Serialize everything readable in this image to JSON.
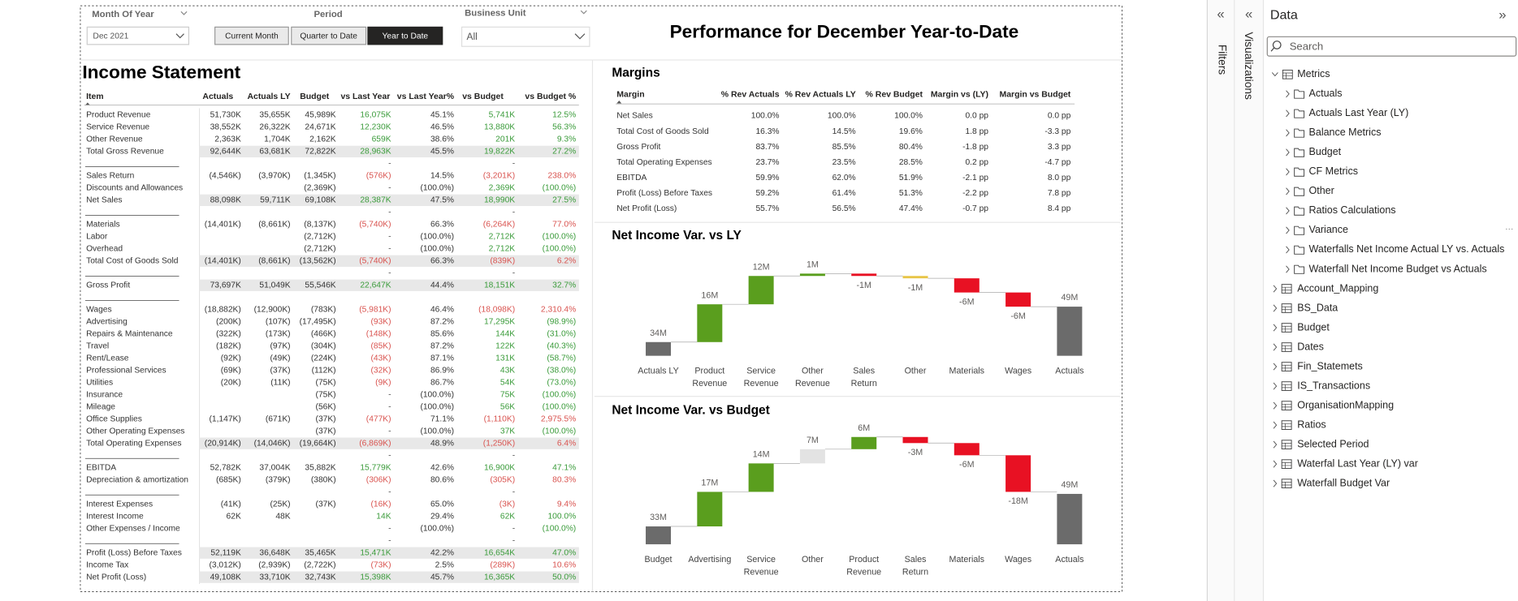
{
  "filters": {
    "month": {
      "label": "Month Of Year",
      "value": "Dec 2021"
    },
    "period": {
      "label": "Period",
      "buttons": [
        "Current Month",
        "Quarter to Date",
        "Year to Date"
      ]
    },
    "business_unit": {
      "label": "Business Unit",
      "value": "All"
    }
  },
  "title": "Performance for December Year-to-Date",
  "income_statement": {
    "title": "Income Statement",
    "columns": [
      "Item",
      "Actuals",
      "Actuals LY",
      "Budget",
      "vs Last Year",
      "vs Last Year%",
      "vs Budget",
      "vs Budget %"
    ],
    "rows": [
      {
        "cells": [
          "Product Revenue",
          "51,730K",
          "35,655K",
          "45,989K",
          "16,075K",
          "45.1%",
          "5,741K",
          "12.5%"
        ]
      },
      {
        "cells": [
          "Service Revenue",
          "38,552K",
          "26,322K",
          "24,671K",
          "12,230K",
          "46.5%",
          "13,880K",
          "56.3%"
        ]
      },
      {
        "cells": [
          "Other Revenue",
          "2,363K",
          "1,704K",
          "2,162K",
          "659K",
          "38.6%",
          "201K",
          "9.3%"
        ]
      },
      {
        "cells": [
          "Total Gross Revenue",
          "92,644K",
          "63,681K",
          "72,822K",
          "28,963K",
          "45.5%",
          "19,822K",
          "27.2%"
        ],
        "shaded": true
      },
      {
        "cells": [
          null,
          null,
          null,
          null,
          "-",
          null,
          "-",
          null
        ],
        "separator": true
      },
      {
        "cells": [
          "Sales Return",
          "(4,546K)",
          "(3,970K)",
          "(1,345K)",
          "(576K)",
          "14.5%",
          "(3,201K)",
          "238.0%"
        ]
      },
      {
        "cells": [
          "Discounts and Allowances",
          null,
          null,
          "(2,369K)",
          "-",
          "(100.0%)",
          "2,369K",
          "(100.0%)"
        ]
      },
      {
        "cells": [
          "Net Sales",
          "88,098K",
          "59,711K",
          "69,108K",
          "28,387K",
          "47.5%",
          "18,990K",
          "27.5%"
        ],
        "shaded": true
      },
      {
        "cells": [
          null,
          null,
          null,
          null,
          "-",
          null,
          "-",
          null
        ],
        "separator": true
      },
      {
        "cells": [
          "Materials",
          "(14,401K)",
          "(8,661K)",
          "(8,137K)",
          "(5,740K)",
          "66.3%",
          "(6,264K)",
          "77.0%"
        ]
      },
      {
        "cells": [
          "Labor",
          null,
          null,
          "(2,712K)",
          "-",
          "(100.0%)",
          "2,712K",
          "(100.0%)"
        ]
      },
      {
        "cells": [
          "Overhead",
          null,
          null,
          "(2,712K)",
          "-",
          "(100.0%)",
          "2,712K",
          "(100.0%)"
        ]
      },
      {
        "cells": [
          "Total Cost of Goods Sold",
          "(14,401K)",
          "(8,661K)",
          "(13,562K)",
          "(5,740K)",
          "66.3%",
          "(839K)",
          "6.2%"
        ],
        "shaded": true
      },
      {
        "cells": [
          null,
          null,
          null,
          null,
          "-",
          null,
          "-",
          null
        ],
        "separator": true
      },
      {
        "cells": [
          "Gross Profit",
          "73,697K",
          "51,049K",
          "55,546K",
          "22,647K",
          "44.4%",
          "18,151K",
          "32.7%"
        ],
        "shaded": true
      },
      {
        "cells": [
          null,
          null,
          null,
          null,
          null,
          null,
          null,
          null
        ],
        "separator": true
      },
      {
        "cells": [
          "Wages",
          "(18,882K)",
          "(12,900K)",
          "(783K)",
          "(5,981K)",
          "46.4%",
          "(18,098K)",
          "2,310.4%"
        ]
      },
      {
        "cells": [
          "Advertising",
          "(200K)",
          "(107K)",
          "(17,495K)",
          "(93K)",
          "87.2%",
          "17,295K",
          "(98.9%)"
        ]
      },
      {
        "cells": [
          "Repairs & Maintenance",
          "(322K)",
          "(173K)",
          "(466K)",
          "(148K)",
          "85.6%",
          "144K",
          "(31.0%)"
        ]
      },
      {
        "cells": [
          "Travel",
          "(182K)",
          "(97K)",
          "(304K)",
          "(85K)",
          "87.2%",
          "122K",
          "(40.3%)"
        ]
      },
      {
        "cells": [
          "Rent/Lease",
          "(92K)",
          "(49K)",
          "(224K)",
          "(43K)",
          "87.1%",
          "131K",
          "(58.7%)"
        ]
      },
      {
        "cells": [
          "Professional Services",
          "(69K)",
          "(37K)",
          "(112K)",
          "(32K)",
          "86.9%",
          "43K",
          "(38.0%)"
        ]
      },
      {
        "cells": [
          "Utilities",
          "(20K)",
          "(11K)",
          "(75K)",
          "(9K)",
          "86.7%",
          "54K",
          "(73.0%)"
        ]
      },
      {
        "cells": [
          "Insurance",
          null,
          null,
          "(75K)",
          "-",
          "(100.0%)",
          "75K",
          "(100.0%)"
        ]
      },
      {
        "cells": [
          "Mileage",
          null,
          null,
          "(56K)",
          "-",
          "(100.0%)",
          "56K",
          "(100.0%)"
        ]
      },
      {
        "cells": [
          "Office Supplies",
          "(1,147K)",
          "(671K)",
          "(37K)",
          "(477K)",
          "71.1%",
          "(1,110K)",
          "2,975.5%"
        ]
      },
      {
        "cells": [
          "Other Operating Expenses",
          null,
          null,
          "(37K)",
          "-",
          "(100.0%)",
          "37K",
          "(100.0%)"
        ]
      },
      {
        "cells": [
          "Total Operating Expenses",
          "(20,914K)",
          "(14,046K)",
          "(19,664K)",
          "(6,869K)",
          "48.9%",
          "(1,250K)",
          "6.4%"
        ],
        "shaded": true
      },
      {
        "cells": [
          null,
          null,
          null,
          null,
          "-",
          null,
          "-",
          null
        ],
        "separator": true
      },
      {
        "cells": [
          "EBITDA",
          "52,782K",
          "37,004K",
          "35,882K",
          "15,779K",
          "42.6%",
          "16,900K",
          "47.1%"
        ]
      },
      {
        "cells": [
          "Depreciation & amortization",
          "(685K)",
          "(379K)",
          "(380K)",
          "(306K)",
          "80.6%",
          "(305K)",
          "80.3%"
        ]
      },
      {
        "cells": [
          null,
          null,
          null,
          null,
          "-",
          null,
          "-",
          null
        ],
        "separator": true
      },
      {
        "cells": [
          "Interest Expenses",
          "(41K)",
          "(25K)",
          "(37K)",
          "(16K)",
          "65.0%",
          "(3K)",
          "9.4%"
        ]
      },
      {
        "cells": [
          "Interest Income",
          "62K",
          "48K",
          null,
          "14K",
          "29.4%",
          "62K",
          "100.0%"
        ]
      },
      {
        "cells": [
          "Other Expenses / Income",
          null,
          null,
          null,
          "-",
          "(100.0%)",
          "-",
          "(100.0%)"
        ]
      },
      {
        "cells": [
          null,
          null,
          null,
          null,
          "-",
          null,
          "-",
          null
        ],
        "separator": true
      },
      {
        "cells": [
          "Profit (Loss) Before Taxes",
          "52,119K",
          "36,648K",
          "35,465K",
          "15,471K",
          "42.2%",
          "16,654K",
          "47.0%"
        ],
        "shaded": true
      },
      {
        "cells": [
          "Income Tax",
          "(3,012K)",
          "(2,939K)",
          "(2,722K)",
          "(73K)",
          "2.5%",
          "(289K)",
          "10.6%"
        ]
      },
      {
        "cells": [
          "Net Profit (Loss)",
          "49,108K",
          "33,710K",
          "32,743K",
          "15,398K",
          "45.7%",
          "16,365K",
          "50.0%"
        ],
        "shaded": true
      }
    ]
  },
  "margins": {
    "title": "Margins",
    "columns": [
      "Margin",
      "% Rev Actuals",
      "% Rev Actuals LY",
      "% Rev Budget",
      "Margin vs (LY)",
      "Margin vs Budget"
    ],
    "rows": [
      [
        "Net Sales",
        "100.0%",
        "100.0%",
        "100.0%",
        "0.0 pp",
        "0.0 pp"
      ],
      [
        "Total Cost of Goods Sold",
        "16.3%",
        "14.5%",
        "19.6%",
        "1.8 pp",
        "-3.3 pp"
      ],
      [
        "Gross Profit",
        "83.7%",
        "85.5%",
        "80.4%",
        "-1.8 pp",
        "3.3 pp"
      ],
      [
        "Total Operating Expenses",
        "23.7%",
        "23.5%",
        "28.5%",
        "0.2 pp",
        "-4.7 pp"
      ],
      [
        "EBITDA",
        "59.9%",
        "62.0%",
        "51.9%",
        "-2.1 pp",
        "8.0 pp"
      ],
      [
        "Profit (Loss) Before Taxes",
        "59.2%",
        "61.4%",
        "51.3%",
        "-2.2 pp",
        "7.8 pp"
      ],
      [
        "Net Profit (Loss)",
        "55.7%",
        "56.5%",
        "47.4%",
        "-0.7 pp",
        "8.4 pp"
      ]
    ]
  },
  "chart_data": [
    {
      "type": "waterfall",
      "title": "Net Income Var. vs LY",
      "categories": [
        "Actuals LY",
        "Product Revenue",
        "Service Revenue",
        "Other Revenue",
        "Sales Return",
        "Other",
        "Materials",
        "Wages",
        "Actuals"
      ],
      "values": [
        34,
        16,
        12,
        1,
        -1,
        -1,
        -6,
        -6,
        49
      ],
      "value_labels": [
        "34M",
        "16M",
        "12M",
        "1M",
        "-1M",
        "-1M",
        "-6M",
        "-6M",
        "49M"
      ],
      "colors": [
        "#6b6b6b",
        "#5a9e1e",
        "#5a9e1e",
        "#5a9e1e",
        "#e81123",
        "#e8c547",
        "#e81123",
        "#e81123",
        "#6b6b6b"
      ]
    },
    {
      "type": "waterfall",
      "title": "Net Income Var. vs Budget",
      "categories": [
        "Budget",
        "Advertising",
        "Service Revenue",
        "Other",
        "Product Revenue",
        "Sales Return",
        "Materials",
        "Wages",
        "Actuals"
      ],
      "values": [
        33,
        17,
        14,
        7,
        6,
        -3,
        -6,
        -18,
        49
      ],
      "value_labels": [
        "33M",
        "17M",
        "14M",
        "7M",
        "6M",
        "-3M",
        "-6M",
        "-18M",
        "49M"
      ],
      "colors": [
        "#6b6b6b",
        "#5a9e1e",
        "#5a9e1e",
        "#e3e3e3",
        "#5a9e1e",
        "#e81123",
        "#e81123",
        "#e81123",
        "#6b6b6b"
      ]
    }
  ],
  "side_tabs": {
    "filters": "Filters",
    "visualizations": "Visualizations"
  },
  "data_pane": {
    "title": "Data",
    "search_placeholder": "Search",
    "metrics": {
      "label": "Metrics",
      "children": [
        "Actuals",
        "Actuals Last Year (LY)",
        "Balance Metrics",
        "Budget",
        "CF Metrics",
        "Other",
        "Ratios Calculations",
        "Variance",
        "Waterfalls Net Income Actual LY vs. Actuals",
        "Waterfall Net Income Budget vs Actuals"
      ]
    },
    "tables": [
      "Account_Mapping",
      "BS_Data",
      "Budget",
      "Dates",
      "Fin_Statemets",
      "IS_Transactions",
      "OrganisationMapping",
      "Ratios",
      "Selected Period",
      "Waterfal Last Year (LY) var",
      "Waterfall Budget Var"
    ]
  }
}
